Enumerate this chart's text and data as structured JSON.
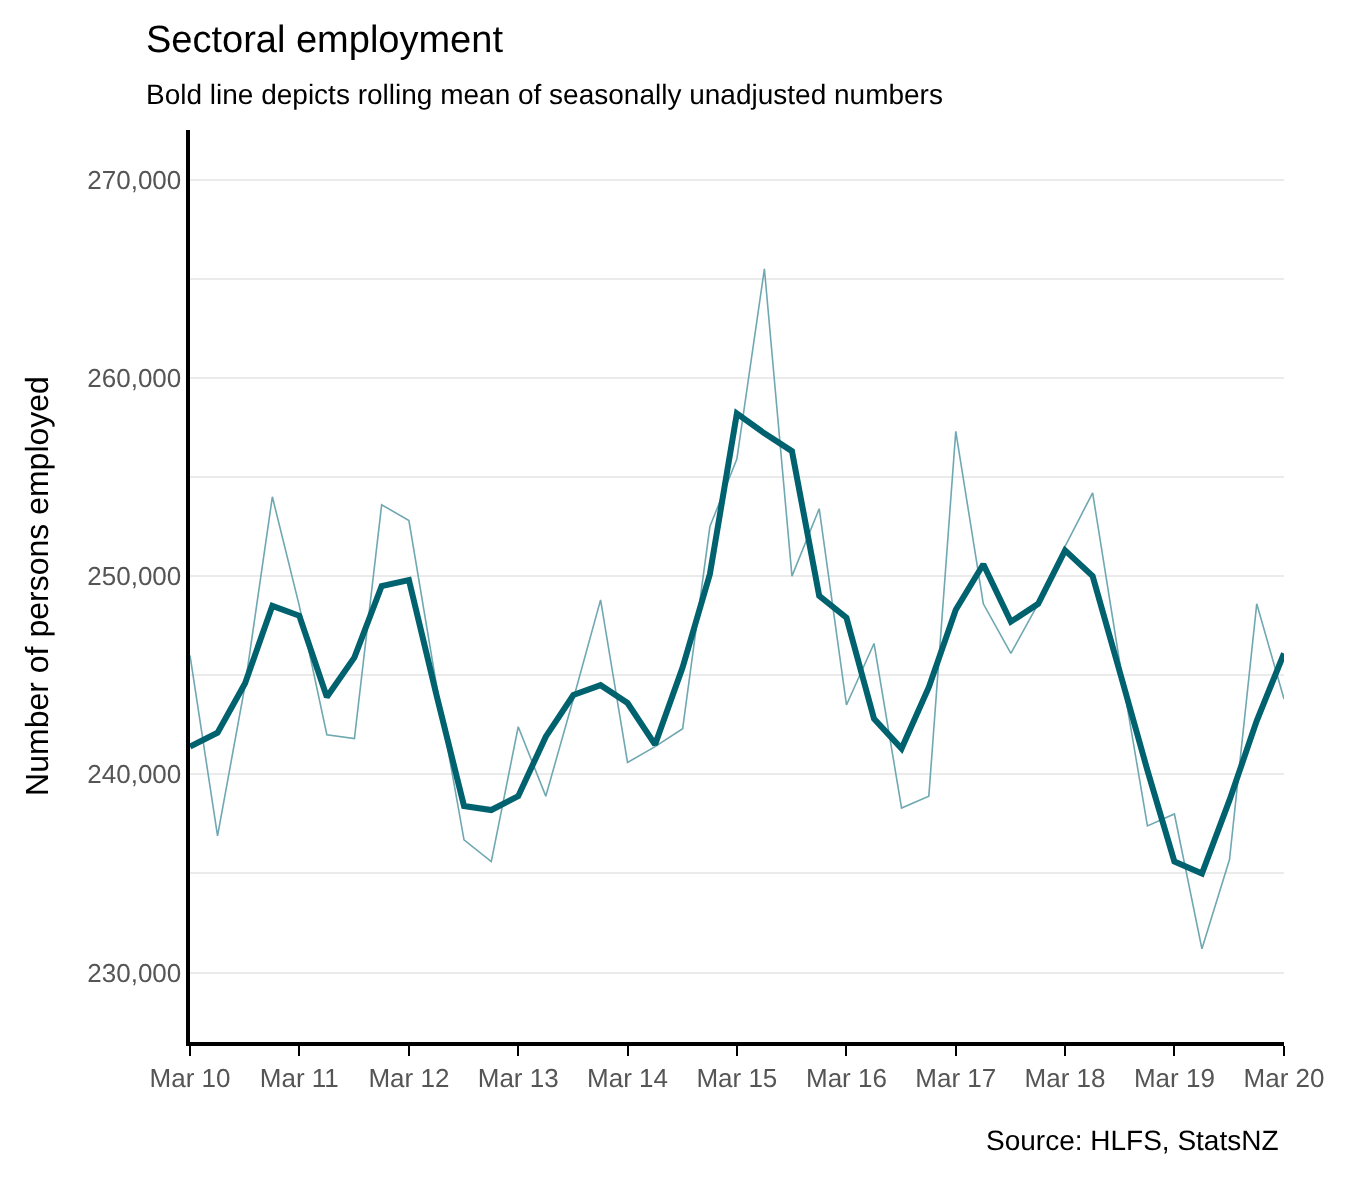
{
  "chart_data": {
    "type": "line",
    "title": "Sectoral employment",
    "subtitle": "Bold line depicts rolling mean of seasonally unadjusted numbers",
    "ylabel": "Number of persons employed",
    "annotations": [
      "Source: HLFS, StatsNZ"
    ],
    "x": [
      "2010-03",
      "2010-06",
      "2010-09",
      "2010-12",
      "2011-03",
      "2011-06",
      "2011-09",
      "2011-12",
      "2012-03",
      "2012-06",
      "2012-09",
      "2012-12",
      "2013-03",
      "2013-06",
      "2013-09",
      "2013-12",
      "2014-03",
      "2014-06",
      "2014-09",
      "2014-12",
      "2015-03",
      "2015-06",
      "2015-09",
      "2015-12",
      "2016-03",
      "2016-06",
      "2016-09",
      "2016-12",
      "2017-03",
      "2017-06",
      "2017-09",
      "2017-12",
      "2018-03",
      "2018-06",
      "2018-09",
      "2018-12",
      "2019-03",
      "2019-06",
      "2019-09",
      "2019-12",
      "2020-03"
    ],
    "series": [
      {
        "color": "#6fa8b1",
        "values": [
          246000,
          236900,
          244500,
          254000,
          248500,
          242000,
          241800,
          253600,
          252800,
          244500,
          236700,
          235600,
          242400,
          238900,
          243800,
          248800,
          240600,
          241400,
          242300,
          252500,
          255900,
          265500,
          250000,
          253400,
          243500,
          246600,
          238300,
          238900,
          257300,
          248600,
          246100,
          248600,
          251500,
          254200,
          245500,
          237400,
          238000,
          231200,
          235700,
          248600,
          243800
        ]
      },
      {
        "color": "#00626f",
        "values": [
          241400,
          242100,
          244600,
          248500,
          248000,
          243900,
          245900,
          249500,
          249800,
          244000,
          238400,
          238200,
          238900,
          241900,
          244000,
          244500,
          243600,
          241500,
          245400,
          250100,
          258200,
          257200,
          256300,
          249000,
          247900,
          242800,
          241300,
          244400,
          248300,
          250600,
          247700,
          248600,
          251300,
          250000,
          245100,
          240200,
          235600,
          235000,
          238700,
          242700,
          246100
        ]
      }
    ],
    "xlim": [
      "2010-03",
      "2020-03"
    ],
    "xticks": [
      {
        "value": "2010-03",
        "label": "Mar 10"
      },
      {
        "value": "2011-03",
        "label": "Mar 11"
      },
      {
        "value": "2012-03",
        "label": "Mar 12"
      },
      {
        "value": "2013-03",
        "label": "Mar 13"
      },
      {
        "value": "2014-03",
        "label": "Mar 14"
      },
      {
        "value": "2015-03",
        "label": "Mar 15"
      },
      {
        "value": "2016-03",
        "label": "Mar 16"
      },
      {
        "value": "2017-03",
        "label": "Mar 17"
      },
      {
        "value": "2018-03",
        "label": "Mar 18"
      },
      {
        "value": "2019-03",
        "label": "Mar 19"
      },
      {
        "value": "2020-03",
        "label": "Mar 20"
      }
    ],
    "ylim": [
      226500,
      272500
    ],
    "yticks": [
      {
        "value": 230000,
        "label": "230,000"
      },
      {
        "value": 235000,
        "label": null
      },
      {
        "value": 240000,
        "label": "240,000"
      },
      {
        "value": 245000,
        "label": null
      },
      {
        "value": 250000,
        "label": "250,000"
      },
      {
        "value": 255000,
        "label": null
      },
      {
        "value": 260000,
        "label": "260,000"
      },
      {
        "value": 265000,
        "label": null
      },
      {
        "value": 270000,
        "label": "270,000"
      }
    ],
    "grid": "y",
    "marker": "none",
    "line_style": "solid"
  }
}
